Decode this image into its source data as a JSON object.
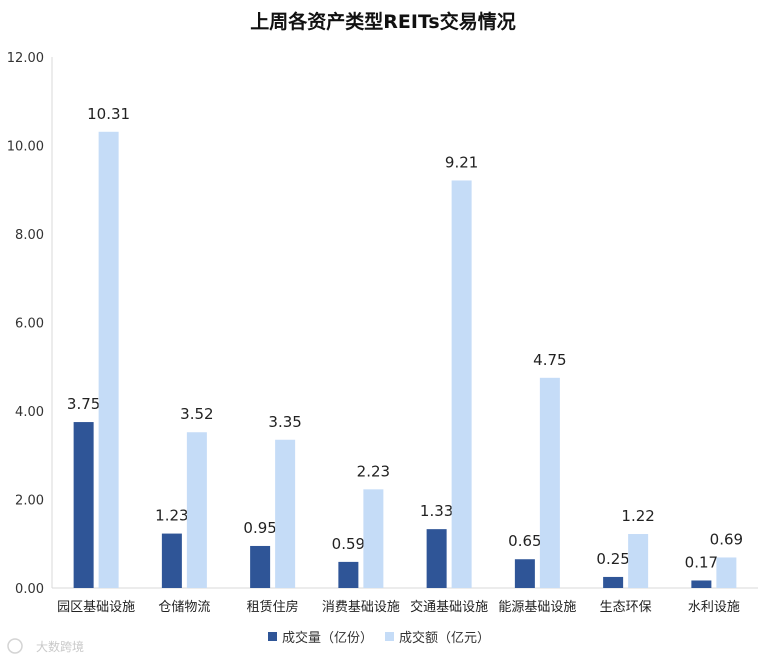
{
  "chart_data": {
    "type": "bar",
    "title": "上周各资产类型REITs交易情况",
    "categories": [
      "园区基础设施",
      "仓储物流",
      "租赁住房",
      "消费基础设施",
      "交通基础设施",
      "能源基础设施",
      "生态环保",
      "水利设施"
    ],
    "series": [
      {
        "name": "成交量（亿份）",
        "color": "#2f5597",
        "values": [
          3.75,
          1.23,
          0.95,
          0.59,
          1.33,
          0.65,
          0.25,
          0.17
        ],
        "labels": [
          "3.75",
          "1.23",
          "0.95",
          "0.59",
          "1.33",
          "0.65",
          "0.25",
          "0.17"
        ]
      },
      {
        "name": "成交额（亿元）",
        "color": "#c5dcf7",
        "values": [
          10.31,
          3.52,
          3.35,
          2.23,
          9.21,
          4.75,
          1.22,
          0.69
        ],
        "labels": [
          "10.31",
          "3.52",
          "3.35",
          "2.23",
          "9.21",
          "4.75",
          "1.22",
          "0.69"
        ]
      }
    ],
    "ylim": [
      0,
      12
    ],
    "yticks": [
      0,
      2,
      4,
      6,
      8,
      10,
      12
    ],
    "ytick_labels": [
      "0.00",
      "2.00",
      "4.00",
      "6.00",
      "8.00",
      "10.00",
      "12.00"
    ],
    "xlabel": "",
    "ylabel": "",
    "legend_position": "bottom-center"
  },
  "watermark": {
    "text": "大数跨境"
  }
}
